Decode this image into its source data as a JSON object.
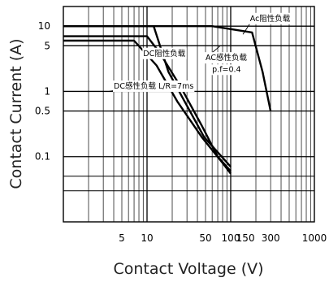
{
  "chart_data": {
    "type": "line",
    "xlabel": "Contact Voltage (V)",
    "ylabel": "Contact Current (A)",
    "x_scale": "log",
    "y_scale": "log",
    "xlim": [
      1,
      1000
    ],
    "ylim": [
      0.01,
      20
    ],
    "grid": true,
    "x_ticks": [
      {
        "value": 5,
        "label": "5"
      },
      {
        "value": 10,
        "label": "10"
      },
      {
        "value": 50,
        "label": "50"
      },
      {
        "value": 100,
        "label": "100"
      },
      {
        "value": 150,
        "label": "150"
      },
      {
        "value": 300,
        "label": "300"
      },
      {
        "value": 1000,
        "label": "1000"
      }
    ],
    "y_ticks": [
      {
        "value": 10,
        "label": "10"
      },
      {
        "value": 5,
        "label": "5"
      },
      {
        "value": 1,
        "label": "1"
      },
      {
        "value": 0.5,
        "label": "0.5"
      },
      {
        "value": 0.1,
        "label": "0.1"
      }
    ],
    "series": [
      {
        "points": [
          [
            1,
            10
          ],
          [
            60,
            10
          ],
          [
            180,
            8
          ],
          [
            240,
            2
          ],
          [
            300,
            0.5
          ]
        ]
      },
      {
        "points": [
          [
            1,
            10
          ],
          [
            12,
            10
          ],
          [
            18,
            2
          ],
          [
            48,
            0.2
          ],
          [
            100,
            0.07
          ]
        ]
      },
      {
        "points": [
          [
            1,
            7
          ],
          [
            10,
            7
          ],
          [
            14,
            4
          ],
          [
            25,
            1.2
          ],
          [
            45,
            0.3
          ],
          [
            70,
            0.1
          ],
          [
            100,
            0.06
          ]
        ]
      },
      {
        "points": [
          [
            1,
            6
          ],
          [
            7,
            6
          ],
          [
            13,
            2.5
          ],
          [
            23,
            0.7
          ],
          [
            45,
            0.2
          ],
          [
            80,
            0.08
          ],
          [
            100,
            0.055
          ]
        ]
      }
    ],
    "annotations": [
      {
        "id": "ac-resistive",
        "text": "Ac阻性负载",
        "x": 170,
        "y": 12
      },
      {
        "id": "dc-resistive",
        "text": "DC阻性负载",
        "x": 9,
        "y": 3.5
      },
      {
        "id": "ac-inductive",
        "text": "AC感性负载",
        "x": 50,
        "y": 3.0
      },
      {
        "id": "ac-pf",
        "text": "p.f=0.4",
        "x": 60,
        "y": 2.0
      },
      {
        "id": "dc-inductive",
        "text": "DC感性负载  L/R=7ms",
        "x": 4,
        "y": 1.1
      }
    ]
  }
}
